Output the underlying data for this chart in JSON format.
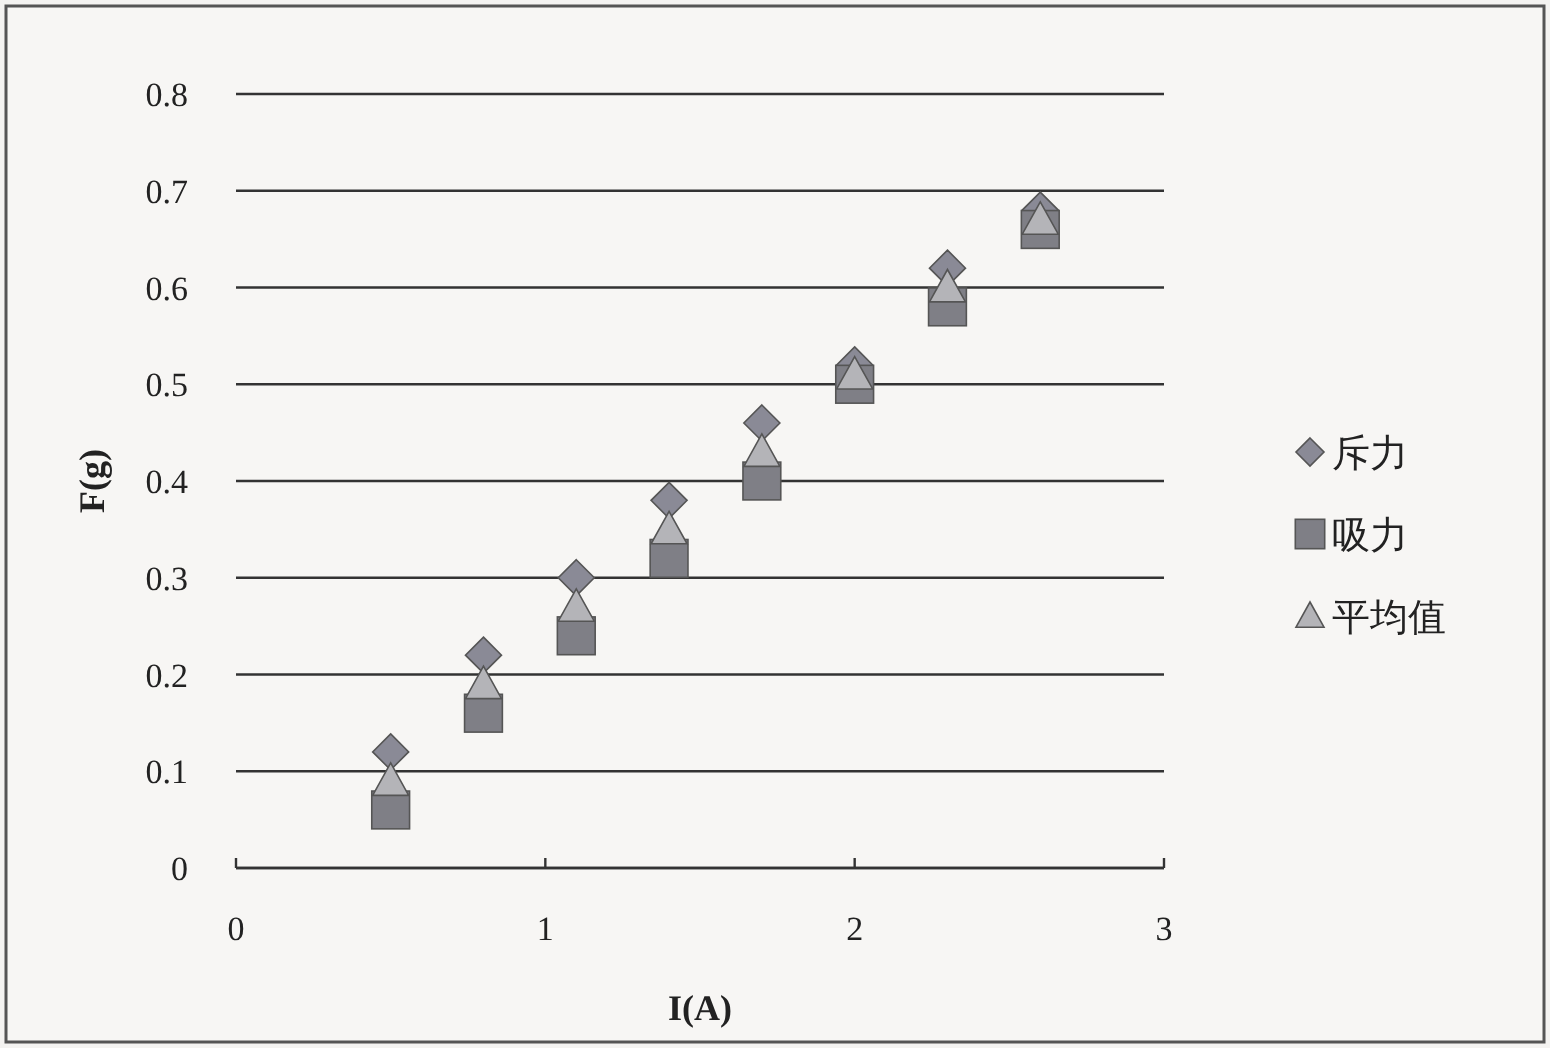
{
  "chart_data": {
    "type": "scatter",
    "xlabel": "I(A)",
    "ylabel": "F(g)",
    "x": [
      0.5,
      0.8,
      1.1,
      1.4,
      1.7,
      2.0,
      2.3,
      2.6
    ],
    "series": [
      {
        "name": "斥力",
        "color": "#8a8a96",
        "marker": "diamond",
        "values": [
          0.12,
          0.22,
          0.3,
          0.38,
          0.46,
          0.52,
          0.62,
          0.68
        ]
      },
      {
        "name": "吸力",
        "color": "#7f7f86",
        "marker": "square",
        "values": [
          0.06,
          0.16,
          0.24,
          0.32,
          0.4,
          0.5,
          0.58,
          0.66
        ]
      },
      {
        "name": "平均值",
        "color": "#b4b4b8",
        "marker": "triangle",
        "values": [
          0.09,
          0.19,
          0.27,
          0.35,
          0.43,
          0.51,
          0.6,
          0.67
        ]
      }
    ],
    "xlim": [
      0,
      3
    ],
    "xticks": [
      0,
      1,
      2,
      3
    ],
    "ylim": [
      0,
      0.8
    ],
    "yticks": [
      0,
      0.1,
      0.2,
      0.3,
      0.4,
      0.5,
      0.6,
      0.7,
      0.8
    ],
    "grid": "y",
    "legend": "right"
  }
}
